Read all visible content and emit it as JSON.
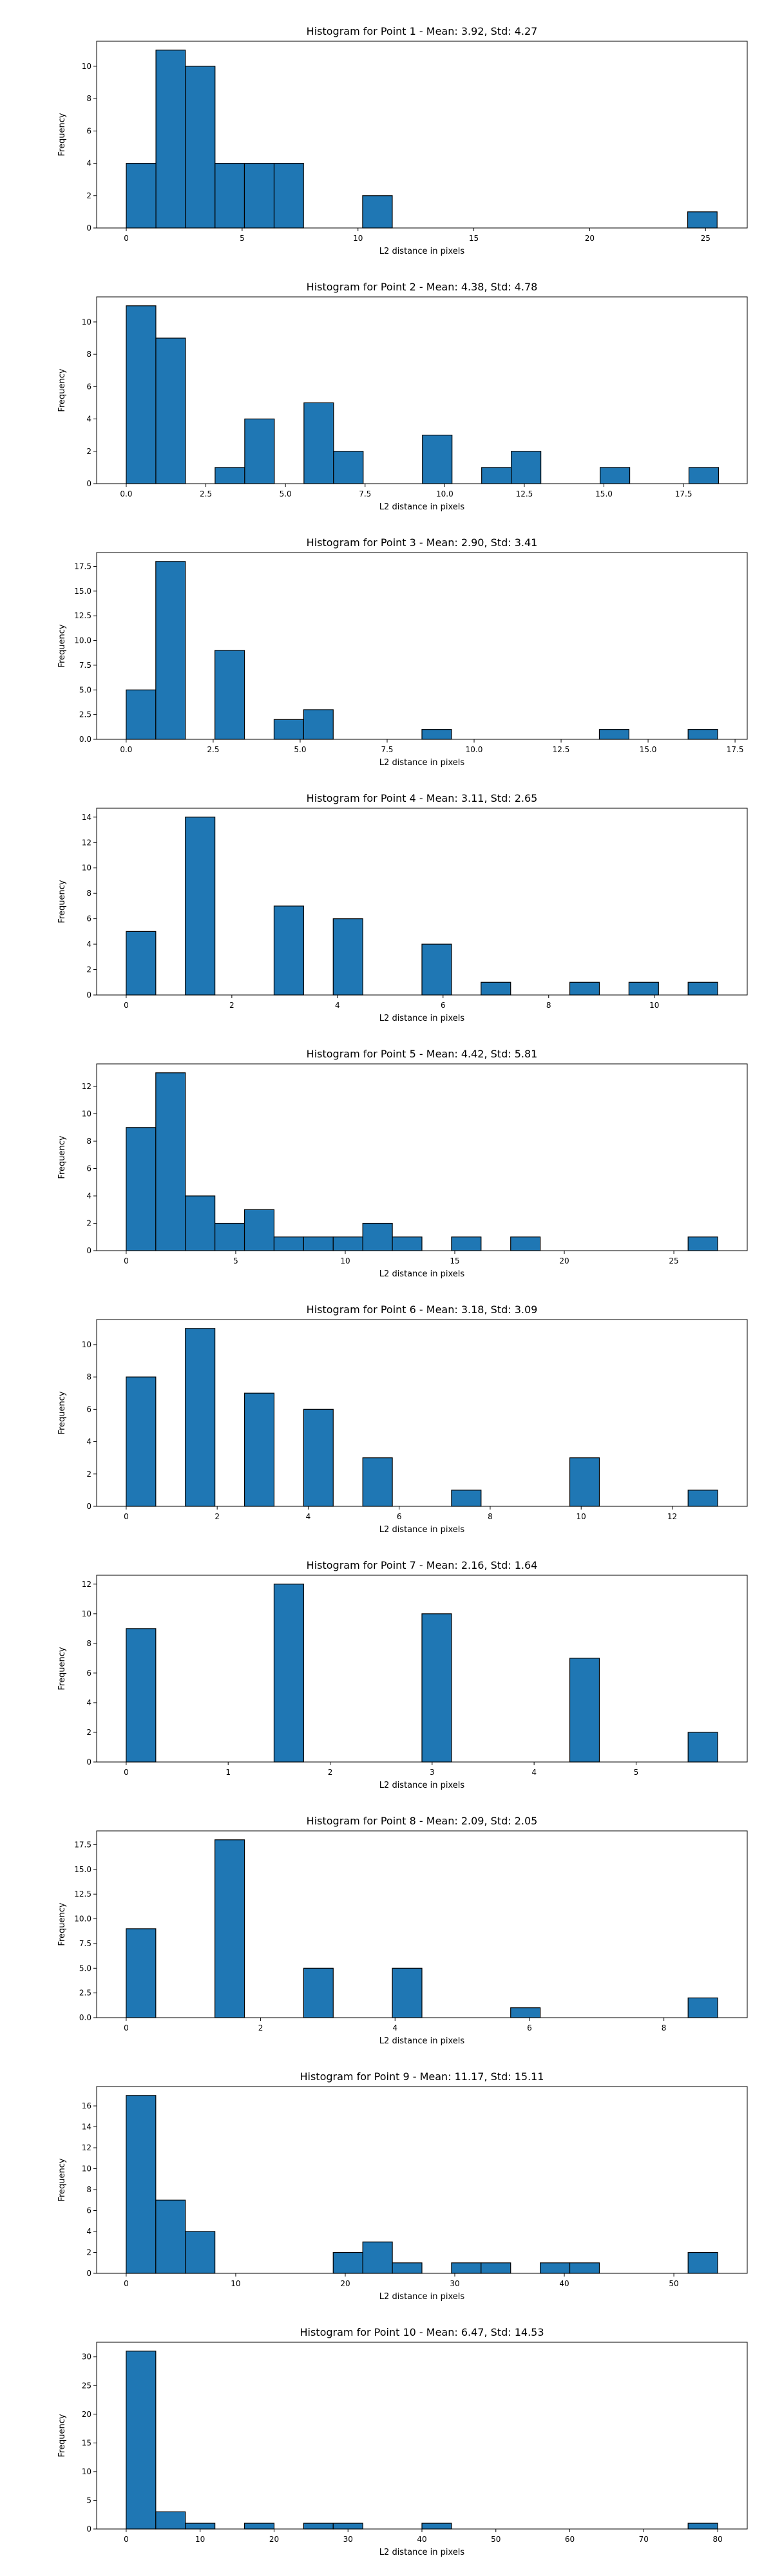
{
  "figure": {
    "bar_color": "#1f77b4",
    "edge_color": "#000000"
  },
  "chart_data": [
    {
      "type": "bar",
      "title": "Histogram for Point 1 - Mean: 3.92, Std: 4.27",
      "xlabel": "L2 distance in pixels",
      "ylabel": "Frequency",
      "xlim": [
        -1.28,
        26.8
      ],
      "ylim": [
        0,
        11.55
      ],
      "xticks": [
        0,
        5,
        10,
        15,
        20,
        25
      ],
      "xtick_labels": [
        "0",
        "5",
        "10",
        "15",
        "20",
        "25"
      ],
      "yticks": [
        0,
        2,
        4,
        6,
        8,
        10
      ],
      "ytick_labels": [
        "0",
        "2",
        "4",
        "6",
        "8",
        "10"
      ],
      "bin_edges": [
        0.0,
        1.28,
        2.55,
        3.83,
        5.1,
        6.38,
        7.65,
        8.93,
        10.2,
        11.48,
        12.75,
        14.03,
        15.3,
        16.58,
        17.85,
        19.13,
        20.4,
        21.68,
        22.95,
        24.23,
        25.5
      ],
      "counts": [
        4,
        11,
        10,
        4,
        4,
        4,
        0,
        0,
        2,
        0,
        0,
        0,
        0,
        0,
        0,
        0,
        0,
        0,
        0,
        1
      ]
    },
    {
      "type": "bar",
      "title": "Histogram for Point 2 - Mean: 4.38, Std: 4.78",
      "xlabel": "L2 distance in pixels",
      "ylabel": "Frequency",
      "xlim": [
        -0.93,
        19.5
      ],
      "ylim": [
        0,
        11.55
      ],
      "xticks": [
        0.0,
        2.5,
        5.0,
        7.5,
        10.0,
        12.5,
        15.0,
        17.5
      ],
      "xtick_labels": [
        "0.0",
        "2.5",
        "5.0",
        "7.5",
        "10.0",
        "12.5",
        "15.0",
        "17.5"
      ],
      "yticks": [
        0,
        2,
        4,
        6,
        8,
        10
      ],
      "ytick_labels": [
        "0",
        "2",
        "4",
        "6",
        "8",
        "10"
      ],
      "bin_edges": [
        0.0,
        0.93,
        1.86,
        2.79,
        3.72,
        4.65,
        5.58,
        6.51,
        7.44,
        8.37,
        9.3,
        10.23,
        11.16,
        12.09,
        13.02,
        13.95,
        14.88,
        15.81,
        16.74,
        17.67,
        18.6
      ],
      "counts": [
        11,
        9,
        0,
        1,
        4,
        0,
        5,
        2,
        0,
        0,
        3,
        0,
        1,
        2,
        0,
        0,
        1,
        0,
        0,
        1
      ]
    },
    {
      "type": "bar",
      "title": "Histogram for Point 3 - Mean: 2.90, Std: 3.41",
      "xlabel": "L2 distance in pixels",
      "ylabel": "Frequency",
      "xlim": [
        -0.85,
        17.85
      ],
      "ylim": [
        0,
        18.9
      ],
      "xticks": [
        0.0,
        2.5,
        5.0,
        7.5,
        10.0,
        12.5,
        15.0,
        17.5
      ],
      "xtick_labels": [
        "0.0",
        "2.5",
        "5.0",
        "7.5",
        "10.0",
        "12.5",
        "15.0",
        "17.5"
      ],
      "yticks": [
        0.0,
        2.5,
        5.0,
        7.5,
        10.0,
        12.5,
        15.0,
        17.5
      ],
      "ytick_labels": [
        "0.0",
        "2.5",
        "5.0",
        "7.5",
        "10.0",
        "12.5",
        "15.0",
        "17.5"
      ],
      "bin_edges": [
        0.0,
        0.85,
        1.7,
        2.55,
        3.4,
        4.25,
        5.1,
        5.95,
        6.8,
        7.65,
        8.5,
        9.35,
        10.2,
        11.05,
        11.9,
        12.75,
        13.6,
        14.45,
        15.3,
        16.15,
        17.0
      ],
      "counts": [
        5,
        18,
        0,
        9,
        0,
        2,
        3,
        0,
        0,
        0,
        1,
        0,
        0,
        0,
        0,
        0,
        1,
        0,
        0,
        1
      ]
    },
    {
      "type": "bar",
      "title": "Histogram for Point 4 - Mean: 3.11, Std: 2.65",
      "xlabel": "L2 distance in pixels",
      "ylabel": "Frequency",
      "xlim": [
        -0.56,
        11.76
      ],
      "ylim": [
        0,
        14.7
      ],
      "xticks": [
        0,
        2,
        4,
        6,
        8,
        10
      ],
      "xtick_labels": [
        "0",
        "2",
        "4",
        "6",
        "8",
        "10"
      ],
      "yticks": [
        0,
        2,
        4,
        6,
        8,
        10,
        12,
        14
      ],
      "ytick_labels": [
        "0",
        "2",
        "4",
        "6",
        "8",
        "10",
        "12",
        "14"
      ],
      "bin_edges": [
        0.0,
        0.56,
        1.12,
        1.68,
        2.24,
        2.8,
        3.36,
        3.92,
        4.48,
        5.04,
        5.6,
        6.16,
        6.72,
        7.28,
        7.84,
        8.4,
        8.96,
        9.52,
        10.08,
        10.64,
        11.2
      ],
      "counts": [
        5,
        0,
        14,
        0,
        0,
        7,
        0,
        6,
        0,
        0,
        4,
        0,
        1,
        0,
        0,
        1,
        0,
        1,
        0,
        1
      ]
    },
    {
      "type": "bar",
      "title": "Histogram for Point 5 - Mean: 4.42, Std: 5.81",
      "xlabel": "L2 distance in pixels",
      "ylabel": "Frequency",
      "xlim": [
        -1.35,
        28.35
      ],
      "ylim": [
        0,
        13.65
      ],
      "xticks": [
        0,
        5,
        10,
        15,
        20,
        25
      ],
      "xtick_labels": [
        "0",
        "5",
        "10",
        "15",
        "20",
        "25"
      ],
      "yticks": [
        0,
        2,
        4,
        6,
        8,
        10,
        12
      ],
      "ytick_labels": [
        "0",
        "2",
        "4",
        "6",
        "8",
        "10",
        "12"
      ],
      "bin_edges": [
        0.0,
        1.35,
        2.7,
        4.05,
        5.4,
        6.75,
        8.1,
        9.45,
        10.8,
        12.15,
        13.5,
        14.85,
        16.2,
        17.55,
        18.9,
        20.25,
        21.6,
        22.95,
        24.3,
        25.65,
        27.0
      ],
      "counts": [
        9,
        13,
        4,
        2,
        3,
        1,
        1,
        1,
        2,
        1,
        0,
        1,
        0,
        1,
        0,
        0,
        0,
        0,
        0,
        1
      ]
    },
    {
      "type": "bar",
      "title": "Histogram for Point 6 - Mean: 3.18, Std: 3.09",
      "xlabel": "L2 distance in pixels",
      "ylabel": "Frequency",
      "xlim": [
        -0.65,
        13.65
      ],
      "ylim": [
        0,
        11.55
      ],
      "xticks": [
        0,
        2,
        4,
        6,
        8,
        10,
        12
      ],
      "xtick_labels": [
        "0",
        "2",
        "4",
        "6",
        "8",
        "10",
        "12"
      ],
      "yticks": [
        0,
        2,
        4,
        6,
        8,
        10
      ],
      "ytick_labels": [
        "0",
        "2",
        "4",
        "6",
        "8",
        "10"
      ],
      "bin_edges": [
        0.0,
        0.65,
        1.3,
        1.95,
        2.6,
        3.25,
        3.9,
        4.55,
        5.2,
        5.85,
        6.5,
        7.15,
        7.8,
        8.45,
        9.1,
        9.75,
        10.4,
        11.05,
        11.7,
        12.35,
        13.0
      ],
      "counts": [
        8,
        0,
        11,
        0,
        7,
        0,
        6,
        0,
        3,
        0,
        0,
        1,
        0,
        0,
        0,
        3,
        0,
        0,
        0,
        1
      ]
    },
    {
      "type": "bar",
      "title": "Histogram for Point 7 - Mean: 2.16, Std: 1.64",
      "xlabel": "L2 distance in pixels",
      "ylabel": "Frequency",
      "xlim": [
        -0.29,
        6.09
      ],
      "ylim": [
        0,
        12.6
      ],
      "xticks": [
        0,
        1,
        2,
        3,
        4,
        5
      ],
      "xtick_labels": [
        "0",
        "1",
        "2",
        "3",
        "4",
        "5"
      ],
      "yticks": [
        0,
        2,
        4,
        6,
        8,
        10,
        12
      ],
      "ytick_labels": [
        "0",
        "2",
        "4",
        "6",
        "8",
        "10",
        "12"
      ],
      "bin_edges": [
        0.0,
        0.29,
        0.58,
        0.87,
        1.16,
        1.45,
        1.74,
        2.03,
        2.32,
        2.61,
        2.9,
        3.19,
        3.48,
        3.77,
        4.06,
        4.35,
        4.64,
        4.93,
        5.22,
        5.51,
        5.8
      ],
      "counts": [
        9,
        0,
        0,
        0,
        0,
        12,
        0,
        0,
        0,
        0,
        10,
        0,
        0,
        0,
        0,
        7,
        0,
        0,
        0,
        2
      ]
    },
    {
      "type": "bar",
      "title": "Histogram for Point 8 - Mean: 2.09, Std: 2.05",
      "xlabel": "L2 distance in pixels",
      "ylabel": "Frequency",
      "xlim": [
        -0.44,
        9.24
      ],
      "ylim": [
        0,
        18.9
      ],
      "xticks": [
        0,
        2,
        4,
        6,
        8
      ],
      "xtick_labels": [
        "0",
        "2",
        "4",
        "6",
        "8"
      ],
      "yticks": [
        0.0,
        2.5,
        5.0,
        7.5,
        10.0,
        12.5,
        15.0,
        17.5
      ],
      "ytick_labels": [
        "0.0",
        "2.5",
        "5.0",
        "7.5",
        "10.0",
        "12.5",
        "15.0",
        "17.5"
      ],
      "bin_edges": [
        0.0,
        0.44,
        0.88,
        1.32,
        1.76,
        2.2,
        2.64,
        3.08,
        3.52,
        3.96,
        4.4,
        4.84,
        5.28,
        5.72,
        6.16,
        6.6,
        7.04,
        7.48,
        7.92,
        8.36,
        8.8
      ],
      "counts": [
        9,
        0,
        0,
        18,
        0,
        0,
        5,
        0,
        0,
        5,
        0,
        0,
        0,
        1,
        0,
        0,
        0,
        0,
        0,
        2
      ]
    },
    {
      "type": "bar",
      "title": "Histogram for Point 9 - Mean: 11.17, Std: 15.11",
      "xlabel": "L2 distance in pixels",
      "ylabel": "Frequency",
      "xlim": [
        -2.7,
        56.7
      ],
      "ylim": [
        0,
        17.85
      ],
      "xticks": [
        0,
        10,
        20,
        30,
        40,
        50
      ],
      "xtick_labels": [
        "0",
        "10",
        "20",
        "30",
        "40",
        "50"
      ],
      "yticks": [
        0,
        2,
        4,
        6,
        8,
        10,
        12,
        14,
        16
      ],
      "ytick_labels": [
        "0",
        "2",
        "4",
        "6",
        "8",
        "10",
        "12",
        "14",
        "16"
      ],
      "bin_edges": [
        0.0,
        2.7,
        5.4,
        8.1,
        10.8,
        13.5,
        16.2,
        18.9,
        21.6,
        24.3,
        27.0,
        29.7,
        32.4,
        35.1,
        37.8,
        40.5,
        43.2,
        45.9,
        48.6,
        51.3,
        54.0
      ],
      "counts": [
        17,
        7,
        4,
        0,
        0,
        0,
        0,
        2,
        3,
        1,
        0,
        1,
        1,
        0,
        1,
        1,
        0,
        0,
        0,
        2
      ]
    },
    {
      "type": "bar",
      "title": "Histogram for Point 10 - Mean: 6.47, Std: 14.53",
      "xlabel": "L2 distance in pixels",
      "ylabel": "Frequency",
      "xlim": [
        -4.0,
        84.0
      ],
      "ylim": [
        0,
        32.55
      ],
      "xticks": [
        0,
        10,
        20,
        30,
        40,
        50,
        60,
        70,
        80
      ],
      "xtick_labels": [
        "0",
        "10",
        "20",
        "30",
        "40",
        "50",
        "60",
        "70",
        "80"
      ],
      "yticks": [
        0,
        5,
        10,
        15,
        20,
        25,
        30
      ],
      "ytick_labels": [
        "0",
        "5",
        "10",
        "15",
        "20",
        "25",
        "30"
      ],
      "bin_edges": [
        0.0,
        4.0,
        8.0,
        12.0,
        16.0,
        20.0,
        24.0,
        28.0,
        32.0,
        36.0,
        40.0,
        44.0,
        48.0,
        52.0,
        56.0,
        60.0,
        64.0,
        68.0,
        72.0,
        76.0,
        80.0
      ],
      "counts": [
        31,
        3,
        1,
        0,
        1,
        0,
        1,
        1,
        0,
        0,
        1,
        0,
        0,
        0,
        0,
        0,
        0,
        0,
        0,
        1
      ]
    }
  ]
}
